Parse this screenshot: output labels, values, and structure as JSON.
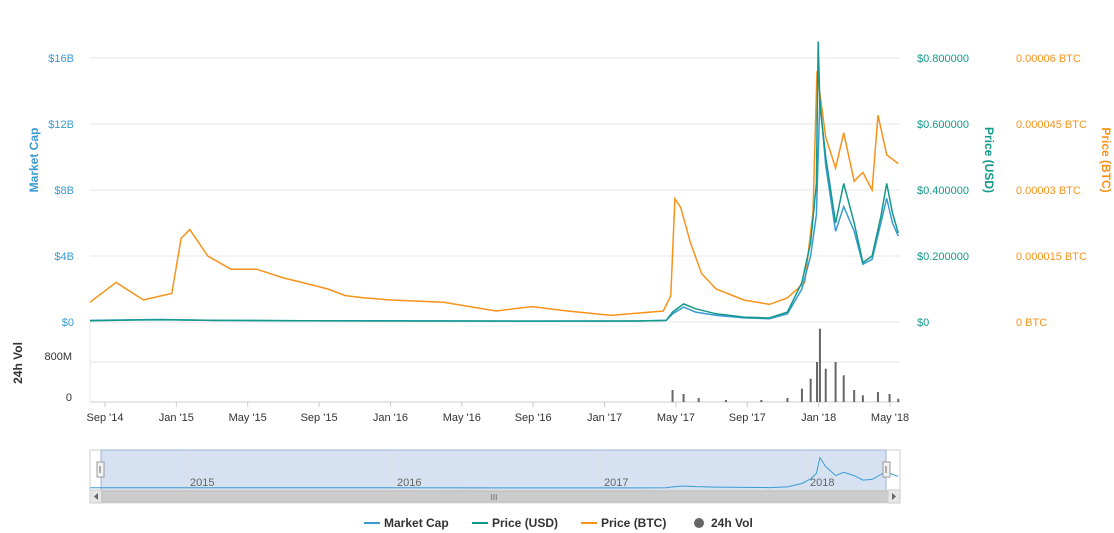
{
  "colors": {
    "market_cap": "#3a9bd1",
    "price_usd": "#12998a",
    "price_btc": "#f7931a",
    "volume": "#666666",
    "grid": "#e6e6e6",
    "navigator_fill": "#cfdcef"
  },
  "chart_data": {
    "type": "line",
    "x_tick_labels": [
      "Sep '14",
      "Jan '15",
      "May '15",
      "Sep '15",
      "Jan '16",
      "May '16",
      "Sep '16",
      "Jan '17",
      "May '17",
      "Sep '17",
      "Jan '18",
      "May '18"
    ],
    "y_axes": {
      "market_cap": {
        "title": "Market Cap",
        "ticks": [
          "$16B",
          "$12B",
          "$8B",
          "$4B",
          "$0"
        ],
        "ylim": [
          0,
          16000000000
        ]
      },
      "price_usd": {
        "title": "Price (USD)",
        "ticks": [
          "$0.800000",
          "$0.600000",
          "$0.400000",
          "$0.200000",
          "$0"
        ],
        "ylim": [
          0,
          0.8
        ]
      },
      "price_btc": {
        "title": "Price (BTC)",
        "ticks": [
          "0.00006 BTC",
          "0.000045 BTC",
          "0.00003 BTC",
          "0.000015 BTC",
          "0 BTC"
        ],
        "ylim": [
          0,
          6e-05
        ]
      },
      "volume": {
        "title": "24h Vol",
        "ticks": [
          "800M",
          "0"
        ],
        "ylim": [
          0,
          1200000000
        ]
      }
    },
    "grid": true,
    "legend_position": "bottom",
    "series": [
      {
        "name": "Market Cap",
        "key": "market_cap",
        "x": [
          "2014-08-01",
          "2014-12-01",
          "2015-03-01",
          "2015-08-01",
          "2016-01-01",
          "2016-08-01",
          "2017-03-01",
          "2017-04-20",
          "2017-05-01",
          "2017-05-20",
          "2017-06-10",
          "2017-07-15",
          "2017-09-01",
          "2017-10-15",
          "2017-11-15",
          "2017-12-10",
          "2017-12-25",
          "2018-01-04",
          "2018-01-10",
          "2018-01-20",
          "2018-02-06",
          "2018-02-20",
          "2018-03-10",
          "2018-03-25",
          "2018-04-10",
          "2018-04-25",
          "2018-05-05",
          "2018-05-15",
          "2018-05-25"
        ],
        "y": [
          100000000.0,
          150000000.0,
          100000000.0,
          80000000.0,
          70000000.0,
          50000000.0,
          60000000.0,
          100000000.0,
          500000000.0,
          900000000.0,
          600000000.0,
          400000000.0,
          250000000.0,
          200000000.0,
          500000000.0,
          2000000000.0,
          4000000000.0,
          6500000000.0,
          13500000000.0,
          9500000000.0,
          5500000000.0,
          7000000000.0,
          5500000000.0,
          3500000000.0,
          3800000000.0,
          6000000000.0,
          7500000000.0,
          6000000000.0,
          5200000000.0
        ]
      },
      {
        "name": "Price (USD)",
        "key": "price_usd",
        "x": [
          "2014-08-01",
          "2014-12-01",
          "2015-03-01",
          "2015-08-01",
          "2016-01-01",
          "2016-08-01",
          "2017-03-01",
          "2017-04-20",
          "2017-05-01",
          "2017-05-20",
          "2017-06-10",
          "2017-07-15",
          "2017-09-01",
          "2017-10-15",
          "2017-11-15",
          "2017-12-10",
          "2017-12-25",
          "2018-01-04",
          "2018-01-07",
          "2018-01-10",
          "2018-01-20",
          "2018-02-06",
          "2018-02-20",
          "2018-03-10",
          "2018-03-25",
          "2018-04-10",
          "2018-04-25",
          "2018-05-05",
          "2018-05-15",
          "2018-05-25"
        ],
        "y": [
          0.004,
          0.007,
          0.005,
          0.004,
          0.003,
          0.003,
          0.003,
          0.005,
          0.03,
          0.055,
          0.04,
          0.025,
          0.015,
          0.012,
          0.03,
          0.12,
          0.24,
          0.42,
          0.85,
          0.66,
          0.5,
          0.3,
          0.42,
          0.3,
          0.18,
          0.2,
          0.32,
          0.42,
          0.33,
          0.27
        ]
      },
      {
        "name": "Price (BTC)",
        "key": "price_btc",
        "x": [
          "2014-08-01",
          "2014-09-15",
          "2014-11-01",
          "2014-12-20",
          "2015-01-05",
          "2015-01-20",
          "2015-02-20",
          "2015-04-01",
          "2015-05-15",
          "2015-07-01",
          "2015-08-01",
          "2015-09-15",
          "2015-10-15",
          "2015-11-15",
          "2016-01-01",
          "2016-04-01",
          "2016-07-01",
          "2016-09-01",
          "2016-11-01",
          "2017-01-15",
          "2017-04-15",
          "2017-04-28",
          "2017-05-05",
          "2017-05-15",
          "2017-06-01",
          "2017-06-20",
          "2017-07-15",
          "2017-09-01",
          "2017-10-15",
          "2017-11-15",
          "2017-12-15",
          "2017-12-29",
          "2018-01-05",
          "2018-01-20",
          "2018-02-06",
          "2018-02-20",
          "2018-03-10",
          "2018-03-25",
          "2018-04-10",
          "2018-04-20",
          "2018-05-05",
          "2018-05-25"
        ],
        "y": [
          4.5e-06,
          9e-06,
          5e-06,
          6.5e-06,
          1.9e-05,
          2.1e-05,
          1.5e-05,
          1.2e-05,
          1.2e-05,
          1e-05,
          9e-06,
          7.5e-06,
          6e-06,
          5.5e-06,
          5e-06,
          4.5e-06,
          2.5e-06,
          3.5e-06,
          2.5e-06,
          1.5e-06,
          2.5e-06,
          6e-06,
          2.8e-05,
          2.6e-05,
          1.8e-05,
          1.1e-05,
          7.5e-06,
          5e-06,
          4e-06,
          5.5e-06,
          9e-06,
          2.5e-05,
          5.7e-05,
          4.2e-05,
          3.5e-05,
          4.3e-05,
          3.2e-05,
          3.4e-05,
          3e-05,
          4.7e-05,
          3.8e-05,
          3.6e-05
        ]
      },
      {
        "name": "24h Vol",
        "key": "volume",
        "x": [
          "2017-05-01",
          "2017-05-20",
          "2017-06-15",
          "2017-08-01",
          "2017-10-01",
          "2017-11-15",
          "2017-12-10",
          "2017-12-25",
          "2018-01-05",
          "2018-01-10",
          "2018-01-20",
          "2018-02-06",
          "2018-02-20",
          "2018-03-10",
          "2018-03-25",
          "2018-04-20",
          "2018-05-10",
          "2018-05-25"
        ],
        "y": [
          180000000,
          120000000,
          60000000,
          30000000,
          30000000,
          60000000,
          200000000,
          350000000,
          600000000,
          1100000000,
          500000000,
          600000000,
          400000000,
          180000000,
          100000000,
          150000000,
          120000000,
          50000000
        ]
      }
    ],
    "navigator": {
      "year_labels": [
        "2015",
        "2016",
        "2017",
        "2018"
      ],
      "grip_label": "III"
    }
  },
  "legend": {
    "items": [
      {
        "label": "Market Cap",
        "key": "market_cap",
        "symbol": "line"
      },
      {
        "label": "Price (USD)",
        "key": "price_usd",
        "symbol": "line"
      },
      {
        "label": "Price (BTC)",
        "key": "price_btc",
        "symbol": "line"
      },
      {
        "label": "24h Vol",
        "key": "volume",
        "symbol": "dot"
      }
    ]
  }
}
